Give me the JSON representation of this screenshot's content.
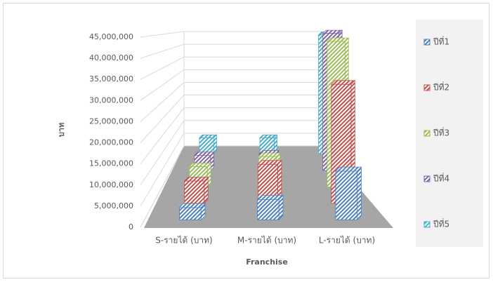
{
  "chart_data": {
    "type": "bar3d",
    "categories": [
      "S-รายได้ (บาท)",
      "M-รายได้ (บาท)",
      "L-รายได้ (บาท)"
    ],
    "series": [
      {
        "name": "ปีที่1",
        "color": "#4f81bd",
        "values": [
          3000000,
          5000000,
          12000000
        ]
      },
      {
        "name": "ปีที่2",
        "color": "#c0504d",
        "values": [
          6000000,
          10500000,
          32000000
        ]
      },
      {
        "name": "ปีที่3",
        "color": "#9bbb59",
        "values": [
          6000000,
          9000000,
          43000000
        ]
      },
      {
        "name": "ปีที่4",
        "color": "#8064a2",
        "values": [
          5000000,
          5500000,
          45000000
        ]
      },
      {
        "name": "ปีที่5",
        "color": "#4bacc6",
        "values": [
          6000000,
          6000000,
          44000000
        ]
      }
    ],
    "y_label": "บาท",
    "x_label": "Franchise",
    "ylim": [
      0,
      45000000
    ],
    "yticks": [
      0,
      {
        "value": 5000000,
        "label": "5,000,000"
      },
      {
        "value": 10000000,
        "label": "10,000,000"
      },
      {
        "value": 15000000,
        "label": "15,000,000"
      },
      {
        "value": 20000000,
        "label": "20,000,000"
      },
      {
        "value": 25000000,
        "label": "25,000,000"
      },
      {
        "value": 30000000,
        "label": "30,000,000"
      },
      {
        "value": 35000000,
        "label": "35,000,000"
      },
      {
        "value": 40000000,
        "label": "40,000,000"
      },
      {
        "value": 45000000,
        "label": "45,000,000"
      }
    ],
    "grid": true,
    "legend": "right"
  }
}
